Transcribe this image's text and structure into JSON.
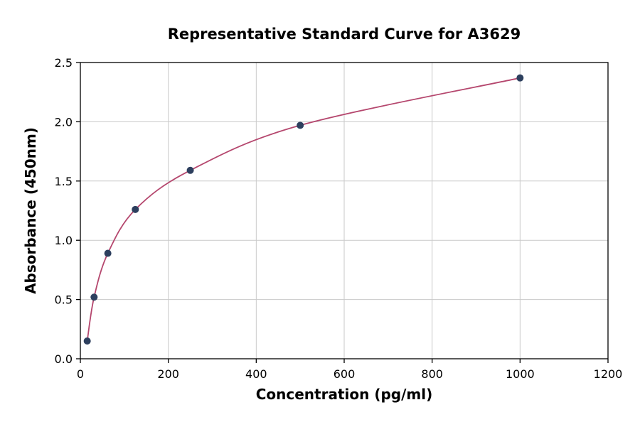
{
  "chart_data": {
    "type": "scatter",
    "title": "Representative Standard Curve for A3629",
    "xlabel": "Concentration (pg/ml)",
    "ylabel": "Absorbance (450nm)",
    "x": [
      15.6,
      31.25,
      62.5,
      125,
      250,
      500,
      1000
    ],
    "y": [
      0.15,
      0.52,
      0.89,
      1.26,
      1.59,
      1.97,
      2.37
    ],
    "xlim": [
      0,
      1200
    ],
    "ylim": [
      0.0,
      2.5
    ],
    "xticks": {
      "values": [
        0,
        200,
        400,
        600,
        800,
        1000,
        1200
      ],
      "labels": [
        "0",
        "200",
        "400",
        "600",
        "800",
        "1000",
        "1200"
      ]
    },
    "yticks": {
      "values": [
        0.0,
        0.5,
        1.0,
        1.5,
        2.0,
        2.5
      ],
      "labels": [
        "0.0",
        "0.5",
        "1.0",
        "1.5",
        "2.0",
        "2.5"
      ]
    },
    "grid": true,
    "legend": false,
    "curve_style": "smooth-fit-line",
    "colors": {
      "line": "#b5476e",
      "point": "#2d3f5e",
      "grid": "#c9c9c9",
      "axis": "#000000",
      "background": "#ffffff"
    }
  }
}
